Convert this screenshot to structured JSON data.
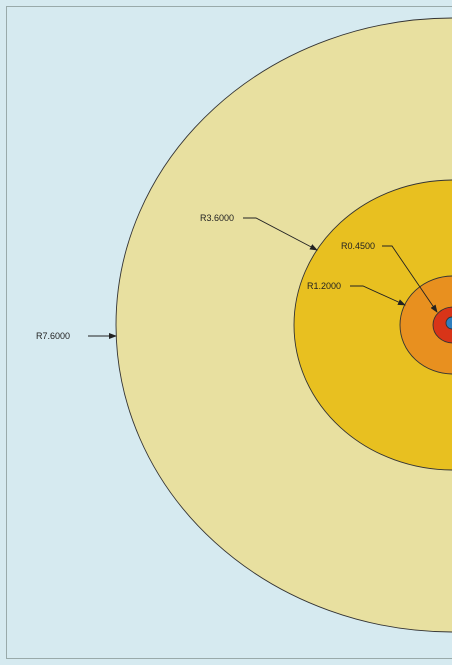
{
  "colors": {
    "background": "#d6eaf0",
    "ring_outer": "#e8e0a0",
    "ring_mid": "#e8c020",
    "ring_inner": "#e8901f",
    "ring_core": "#d83418",
    "core_center": "#2f7ebe",
    "outline": "#333333",
    "leader": "#222222"
  },
  "labels": {
    "r_outer": "R7.6000",
    "r_mid": "R3.6000",
    "r_inner": "R1.2000",
    "r_core": "R0.4500"
  }
}
